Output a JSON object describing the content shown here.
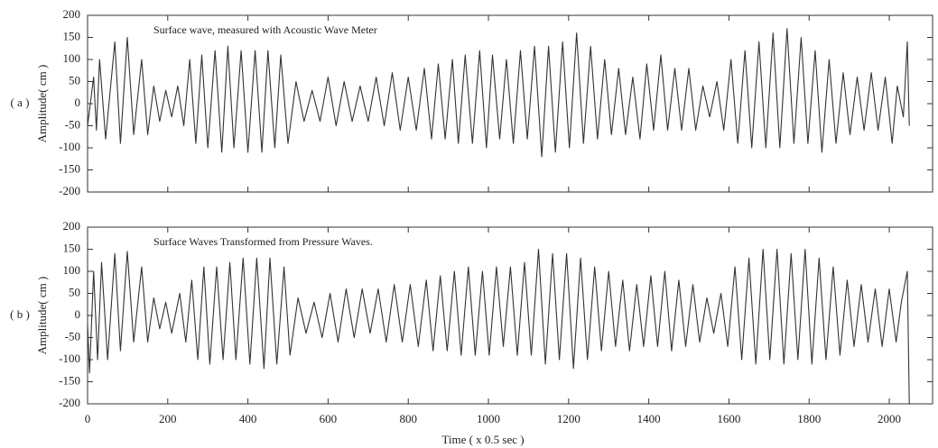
{
  "chart_data": [
    {
      "type": "line",
      "panel_label": "( a )",
      "ylabel": "Amplitude( cm )",
      "annotation": "Surface wave, measured with Acoustic Wave Meter",
      "xlim": [
        0,
        2108
      ],
      "xticks": [
        0,
        200,
        400,
        600,
        800,
        1000,
        1200,
        1400,
        1600,
        1800,
        2000
      ],
      "ylim": [
        -200,
        200
      ],
      "yticks": [
        -200,
        -150,
        -100,
        -50,
        0,
        50,
        100,
        150,
        200
      ],
      "color": "#333333",
      "x": [
        0,
        15,
        22,
        30,
        45,
        68,
        82,
        99,
        115,
        135,
        150,
        165,
        180,
        195,
        210,
        225,
        240,
        255,
        270,
        285,
        300,
        318,
        335,
        350,
        365,
        383,
        400,
        418,
        435,
        450,
        467,
        482,
        500,
        520,
        540,
        560,
        580,
        600,
        620,
        640,
        660,
        680,
        700,
        720,
        740,
        760,
        780,
        800,
        820,
        840,
        858,
        875,
        892,
        910,
        925,
        942,
        960,
        978,
        995,
        1010,
        1028,
        1045,
        1062,
        1080,
        1097,
        1115,
        1133,
        1150,
        1167,
        1185,
        1202,
        1220,
        1237,
        1255,
        1272,
        1290,
        1307,
        1325,
        1342,
        1360,
        1378,
        1395,
        1412,
        1430,
        1447,
        1465,
        1482,
        1500,
        1517,
        1535,
        1552,
        1570,
        1587,
        1605,
        1622,
        1640,
        1657,
        1675,
        1692,
        1710,
        1727,
        1745,
        1762,
        1780,
        1797,
        1815,
        1832,
        1850,
        1867,
        1885,
        1902,
        1920,
        1937,
        1955,
        1972,
        1990,
        2007,
        2020,
        2035,
        2045,
        2050
      ],
      "values": [
        -50,
        60,
        -60,
        100,
        -80,
        140,
        -90,
        150,
        -70,
        100,
        -70,
        40,
        -40,
        30,
        -30,
        40,
        -50,
        100,
        -90,
        110,
        -100,
        120,
        -110,
        130,
        -100,
        120,
        -110,
        120,
        -110,
        120,
        -100,
        110,
        -90,
        50,
        -40,
        30,
        -40,
        60,
        -50,
        50,
        -40,
        40,
        -40,
        60,
        -50,
        70,
        -60,
        60,
        -60,
        80,
        -80,
        90,
        -80,
        100,
        -90,
        110,
        -90,
        120,
        -100,
        110,
        -80,
        100,
        -90,
        120,
        -80,
        130,
        -120,
        130,
        -110,
        140,
        -100,
        160,
        -90,
        130,
        -80,
        100,
        -70,
        80,
        -70,
        60,
        -80,
        90,
        -60,
        110,
        -60,
        80,
        -60,
        80,
        -60,
        40,
        -30,
        50,
        -60,
        100,
        -90,
        120,
        -100,
        140,
        -100,
        160,
        -100,
        170,
        -90,
        150,
        -90,
        120,
        -110,
        100,
        -90,
        70,
        -70,
        60,
        -60,
        70,
        -60,
        60,
        -90,
        40,
        -30,
        140,
        -50
      ]
    },
    {
      "type": "line",
      "panel_label": "( b )",
      "ylabel": "Amplitude( cm )",
      "xlabel": "Time ( x 0.5 sec )",
      "annotation": "Surface Waves Transformed from Pressure Waves.",
      "xlim": [
        0,
        2108
      ],
      "xticks": [
        0,
        200,
        400,
        600,
        800,
        1000,
        1200,
        1400,
        1600,
        1800,
        2000
      ],
      "ylim": [
        -200,
        200
      ],
      "yticks": [
        -200,
        -150,
        -100,
        -50,
        0,
        50,
        100,
        150,
        200
      ],
      "color": "#333333",
      "x": [
        0,
        5,
        15,
        25,
        35,
        50,
        68,
        82,
        99,
        115,
        135,
        150,
        165,
        180,
        195,
        210,
        230,
        245,
        260,
        275,
        290,
        305,
        322,
        338,
        355,
        370,
        388,
        405,
        422,
        440,
        455,
        472,
        490,
        505,
        525,
        545,
        565,
        585,
        605,
        625,
        645,
        665,
        685,
        705,
        725,
        745,
        765,
        785,
        805,
        825,
        845,
        862,
        880,
        897,
        915,
        932,
        950,
        967,
        985,
        1002,
        1020,
        1037,
        1055,
        1072,
        1090,
        1107,
        1125,
        1142,
        1160,
        1177,
        1195,
        1212,
        1230,
        1247,
        1265,
        1282,
        1300,
        1317,
        1335,
        1352,
        1370,
        1387,
        1405,
        1422,
        1440,
        1457,
        1475,
        1492,
        1510,
        1527,
        1545,
        1562,
        1580,
        1597,
        1615,
        1632,
        1650,
        1667,
        1685,
        1702,
        1720,
        1737,
        1755,
        1772,
        1790,
        1807,
        1825,
        1842,
        1860,
        1877,
        1895,
        1912,
        1930,
        1947,
        1965,
        1982,
        2000,
        2017,
        2030,
        2045,
        2050
      ],
      "values": [
        -20,
        -130,
        100,
        -100,
        120,
        -100,
        140,
        -80,
        145,
        -60,
        110,
        -60,
        40,
        -30,
        30,
        -40,
        50,
        -60,
        80,
        -100,
        110,
        -110,
        110,
        -100,
        120,
        -100,
        130,
        -110,
        130,
        -120,
        130,
        -110,
        110,
        -90,
        40,
        -40,
        30,
        -50,
        50,
        -60,
        60,
        -50,
        60,
        -40,
        60,
        -60,
        70,
        -60,
        70,
        -70,
        80,
        -80,
        90,
        -80,
        100,
        -90,
        110,
        -90,
        100,
        -90,
        110,
        -70,
        110,
        -90,
        120,
        -90,
        150,
        -110,
        140,
        -100,
        140,
        -120,
        130,
        -100,
        110,
        -80,
        100,
        -70,
        80,
        -80,
        70,
        -70,
        90,
        -70,
        100,
        -80,
        80,
        -70,
        70,
        -60,
        40,
        -40,
        50,
        -70,
        110,
        -100,
        130,
        -110,
        150,
        -100,
        150,
        -110,
        140,
        -100,
        150,
        -110,
        130,
        -100,
        110,
        -90,
        80,
        -70,
        70,
        -60,
        60,
        -70,
        60,
        -60,
        30,
        100,
        -200
      ]
    }
  ]
}
